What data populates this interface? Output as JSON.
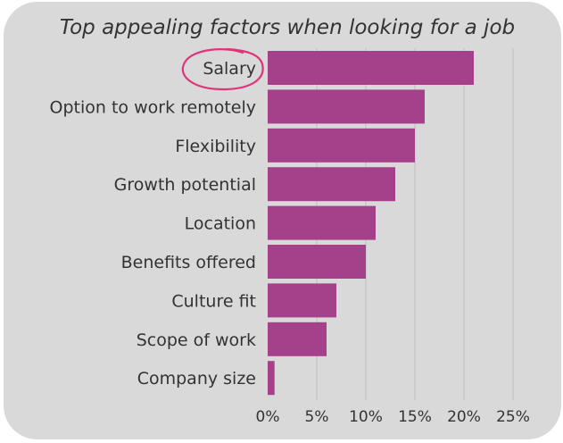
{
  "chart_data": {
    "type": "bar",
    "orientation": "horizontal",
    "title": "Top appealing factors when looking for a job",
    "categories": [
      "Salary",
      "Option to work remotely",
      "Flexibility",
      "Growth potential",
      "Location",
      "Benefits offered",
      "Culture fit",
      "Scope of work",
      "Company size"
    ],
    "values": [
      21,
      16,
      15,
      13,
      11,
      10,
      7,
      6,
      0.7
    ],
    "value_unit": "%",
    "xlim": [
      0,
      25
    ],
    "xticks": [
      "0%",
      "5%",
      "10%",
      "15%",
      "20%",
      "25%"
    ],
    "xlabel": "",
    "ylabel": "",
    "grid": "vertical",
    "bar_color": "#a5418a",
    "annotation": {
      "type": "hand-drawn circle",
      "target": "Salary",
      "color": "#e0337a"
    }
  }
}
